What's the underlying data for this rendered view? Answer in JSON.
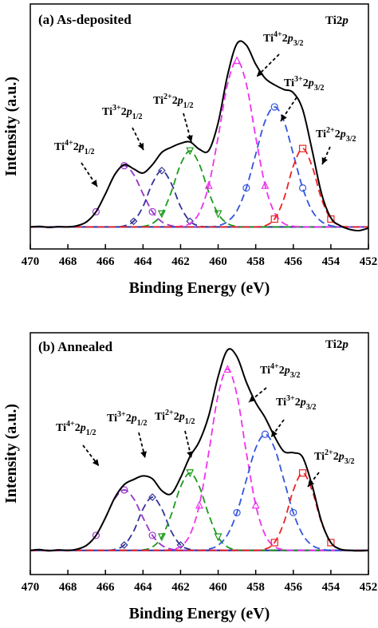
{
  "chart_data": [
    {
      "type": "line",
      "title": "(a) As-deposited",
      "core_level": {
        "text": "Ti2",
        "italic": "p"
      },
      "xlabel": "Binding Energy (eV)",
      "ylabel": "Intensity (a.u.)",
      "xlim": [
        470,
        452
      ],
      "xticks": [
        470,
        468,
        466,
        464,
        462,
        460,
        458,
        456,
        454,
        452
      ],
      "ylim": [
        0,
        100
      ],
      "x": [
        470,
        469.5,
        469,
        468.5,
        468,
        467.5,
        467,
        466.5,
        466,
        465.5,
        465,
        464.5,
        464,
        463.5,
        463,
        462.5,
        462,
        461.5,
        461,
        460.5,
        460,
        459.5,
        459,
        458.5,
        458,
        457.5,
        457,
        456.5,
        456,
        455.5,
        455,
        454.5,
        454,
        453.5,
        453,
        452.5,
        452
      ],
      "series": [
        {
          "color": "#2233aa",
          "style": "solid",
          "values": [
            9,
            9,
            9,
            9,
            9,
            9,
            9,
            9,
            9,
            9,
            9,
            9,
            9,
            9,
            9,
            9,
            9,
            9,
            9,
            9,
            9,
            9,
            9,
            9,
            9,
            9,
            9,
            9,
            9,
            9,
            9,
            9,
            9,
            9,
            9,
            9,
            9
          ]
        },
        {
          "color": "#9933cc",
          "style": "dashed",
          "marker": "circle",
          "values": [
            9,
            9,
            9,
            9,
            9,
            9.5,
            11.1,
            15.2,
            22.5,
            30.4,
            34,
            30.4,
            22.5,
            15.2,
            11.1,
            9.5,
            9,
            9,
            9,
            9,
            9,
            9,
            9,
            9,
            9,
            9,
            9,
            9,
            9,
            9,
            9,
            9,
            9,
            9,
            9,
            9,
            9
          ]
        },
        {
          "color": "#333399",
          "style": "dashed",
          "marker": "diamond",
          "values": [
            9,
            9,
            9,
            9,
            9,
            9,
            9,
            9,
            9,
            9,
            9.4,
            11.3,
            17.3,
            26.8,
            32,
            26.8,
            17.3,
            11.3,
            9.4,
            9,
            9,
            9,
            9,
            9,
            9,
            9,
            9,
            9,
            9,
            9,
            9,
            9,
            9,
            9,
            9,
            9,
            9
          ]
        },
        {
          "color": "#1a9a1a",
          "style": "dashed",
          "marker": "triangle-down",
          "values": [
            9,
            9,
            9,
            9,
            9,
            9,
            9,
            9,
            9,
            9,
            9,
            9,
            9.2,
            10.4,
            14.3,
            23.2,
            34.5,
            40,
            34.5,
            23.2,
            14.3,
            10.4,
            9.2,
            9,
            9,
            9,
            9,
            9,
            9,
            9,
            9,
            9,
            9,
            9,
            9,
            9,
            9
          ]
        },
        {
          "color": "#ee33ee",
          "style": "dashed",
          "marker": "triangle-up",
          "values": [
            9,
            9,
            9,
            9,
            9,
            9,
            9,
            9,
            9,
            9,
            9,
            9,
            9,
            9,
            9,
            9,
            9.3,
            10.4,
            14.8,
            26,
            45.7,
            67.3,
            77,
            67.3,
            45.7,
            26,
            14.8,
            10.4,
            9.3,
            9,
            9,
            9,
            9,
            9,
            9,
            9,
            9
          ]
        },
        {
          "color": "#3355dd",
          "style": "dashed",
          "marker": "circle",
          "values": [
            9,
            9,
            9,
            9,
            9,
            9,
            9,
            9,
            9,
            9,
            9,
            9,
            9,
            9,
            9,
            9,
            9,
            9,
            9,
            9,
            9.5,
            11.2,
            15.6,
            24.9,
            38.7,
            52.2,
            58,
            52.2,
            38.7,
            24.9,
            15.6,
            11.2,
            9.5,
            9,
            9,
            9,
            9
          ]
        },
        {
          "color": "#ee2222",
          "style": "dashed",
          "marker": "square",
          "values": [
            9,
            9,
            9,
            9,
            9,
            9,
            9,
            9,
            9,
            9,
            9,
            9,
            9,
            9,
            9,
            9,
            9,
            9,
            9,
            9,
            9,
            9,
            9,
            9,
            9,
            9.5,
            12.2,
            20.5,
            33.8,
            41,
            33.8,
            20.5,
            12.2,
            9.5,
            9,
            9,
            9
          ]
        },
        {
          "color": "#000000",
          "style": "solid",
          "values": [
            9,
            9.2,
            8.8,
            9.1,
            9,
            9.5,
            11.1,
            15.2,
            22.5,
            30.4,
            34.4,
            32.7,
            31,
            34.4,
            39.4,
            41.5,
            43.1,
            43.7,
            40.7,
            40.2,
            51.5,
            70.9,
            83.8,
            83.2,
            75.4,
            69.7,
            67,
            65.1,
            63.8,
            56.9,
            40.4,
            22.7,
            12.7,
            9.5,
            8,
            7.5,
            8.5
          ]
        }
      ],
      "annotations": [
        {
          "base": "Ti",
          "sup": "4+",
          "n": "2",
          "l": "p",
          "sub": "1/2"
        },
        {
          "base": "Ti",
          "sup": "3+",
          "n": "2",
          "l": "p",
          "sub": "1/2"
        },
        {
          "base": "Ti",
          "sup": "2+",
          "n": "2",
          "l": "p",
          "sub": "1/2"
        },
        {
          "base": "Ti",
          "sup": "4+",
          "n": "2",
          "l": "p",
          "sub": "3/2"
        },
        {
          "base": "Ti",
          "sup": "3+",
          "n": "2",
          "l": "p",
          "sub": "3/2"
        },
        {
          "base": "Ti",
          "sup": "2+",
          "n": "2",
          "l": "p",
          "sub": "3/2"
        }
      ]
    },
    {
      "type": "line",
      "title": "(b) Annealed",
      "core_level": {
        "text": "Ti2",
        "italic": "p"
      },
      "xlabel": "Binding Energy (eV)",
      "ylabel": "Intensity (a.u.)",
      "xlim": [
        470,
        452
      ],
      "xticks": [
        470,
        468,
        466,
        464,
        462,
        460,
        458,
        456,
        454,
        452
      ],
      "ylim": [
        0,
        100
      ],
      "x": [
        470,
        469.5,
        469,
        468.5,
        468,
        467.5,
        467,
        466.5,
        466,
        465.5,
        465,
        464.5,
        464,
        463.5,
        463,
        462.5,
        462,
        461.5,
        461,
        460.5,
        460,
        459.5,
        459,
        458.5,
        458,
        457.5,
        457,
        456.5,
        456,
        455.5,
        455,
        454.5,
        454,
        453.5,
        453,
        452.5,
        452
      ],
      "series": [
        {
          "color": "#2233aa",
          "style": "solid",
          "values": [
            10,
            10,
            10,
            10,
            10,
            10,
            10,
            10,
            10,
            10,
            10,
            10,
            10,
            10,
            10,
            10,
            10,
            10,
            10,
            10,
            10,
            10,
            10,
            10,
            10,
            10,
            10,
            10,
            10,
            10,
            10,
            10,
            10,
            10,
            10,
            10,
            10
          ]
        },
        {
          "color": "#9933cc",
          "style": "dashed",
          "marker": "circle",
          "values": [
            10,
            10,
            10,
            10,
            10,
            10.5,
            12.1,
            16.2,
            23.5,
            31.4,
            35,
            31.4,
            23.5,
            16.2,
            12.1,
            10.5,
            10,
            10,
            10,
            10,
            10,
            10,
            10,
            10,
            10,
            10,
            10,
            10,
            10,
            10,
            10,
            10,
            10,
            10,
            10,
            10,
            10
          ]
        },
        {
          "color": "#333399",
          "style": "dashed",
          "marker": "diamond",
          "values": [
            10,
            10,
            10,
            10,
            10,
            10,
            10,
            10,
            10,
            10.4,
            12.2,
            17.9,
            27.1,
            32,
            27.1,
            17.9,
            12.2,
            10.4,
            10,
            10,
            10,
            10,
            10,
            10,
            10,
            10,
            10,
            10,
            10,
            10,
            10,
            10,
            10,
            10,
            10,
            10,
            10
          ]
        },
        {
          "color": "#1a9a1a",
          "style": "dashed",
          "marker": "triangle-down",
          "values": [
            10,
            10,
            10,
            10,
            10,
            10,
            10,
            10,
            10,
            10,
            10,
            10,
            10.2,
            11.4,
            15.5,
            24.7,
            36.3,
            42,
            36.3,
            24.7,
            15.5,
            11.4,
            10.2,
            10,
            10,
            10,
            10,
            10,
            10,
            10,
            10,
            10,
            10,
            10,
            10,
            10,
            10
          ]
        },
        {
          "color": "#ee33ee",
          "style": "dashed",
          "marker": "triangle-up",
          "values": [
            10,
            10,
            10,
            10,
            10,
            10,
            10,
            10,
            10,
            10,
            10,
            10,
            10,
            10,
            10,
            10.3,
            11.6,
            16.4,
            28.8,
            50.5,
            74.3,
            85,
            74.3,
            50.5,
            28.8,
            16.4,
            11.6,
            10.3,
            10,
            10,
            10,
            10,
            10,
            10,
            10,
            10,
            10
          ]
        },
        {
          "color": "#3355dd",
          "style": "dashed",
          "marker": "circle",
          "values": [
            10,
            10,
            10,
            10,
            10,
            10,
            10,
            10,
            10,
            10,
            10,
            10,
            10,
            10,
            10,
            10,
            10,
            10,
            10,
            10.5,
            12.1,
            16.5,
            25.6,
            39.1,
            52.3,
            58,
            52.3,
            39.1,
            25.6,
            16.5,
            12.1,
            10.5,
            10,
            10,
            10,
            10,
            10
          ]
        },
        {
          "color": "#ee2222",
          "style": "dashed",
          "marker": "square",
          "values": [
            10,
            10,
            10,
            10,
            10,
            10,
            10,
            10,
            10,
            10,
            10,
            10,
            10,
            10,
            10,
            10,
            10,
            10,
            10,
            10,
            10,
            10,
            10,
            10,
            10,
            10.5,
            13.2,
            21.5,
            34.8,
            42,
            34.8,
            21.5,
            13.2,
            10.5,
            10,
            10,
            10
          ]
        },
        {
          "color": "#000000",
          "style": "solid",
          "values": [
            10,
            10.3,
            9.8,
            10.2,
            10,
            10.5,
            12.1,
            16.2,
            23.5,
            31.8,
            37.2,
            39.3,
            40.8,
            39.6,
            34.7,
            33.4,
            40.1,
            48.8,
            55.1,
            65.7,
            81.9,
            92.9,
            90.1,
            79.6,
            71.1,
            64.9,
            57.1,
            50.9,
            50.4,
            48.5,
            36.9,
            22,
            13.2,
            10.5,
            10,
            9.8,
            10
          ]
        }
      ],
      "annotations": [
        {
          "base": "Ti",
          "sup": "4+",
          "n": "2",
          "l": "p",
          "sub": "1/2"
        },
        {
          "base": "Ti",
          "sup": "3+",
          "n": "2",
          "l": "p",
          "sub": "1/2"
        },
        {
          "base": "Ti",
          "sup": "2+",
          "n": "2",
          "l": "p",
          "sub": "1/2"
        },
        {
          "base": "Ti",
          "sup": "4+",
          "n": "2",
          "l": "p",
          "sub": "3/2"
        },
        {
          "base": "Ti",
          "sup": "3+",
          "n": "2",
          "l": "p",
          "sub": "3/2"
        },
        {
          "base": "Ti",
          "sup": "2+",
          "n": "2",
          "l": "p",
          "sub": "3/2"
        }
      ]
    }
  ]
}
